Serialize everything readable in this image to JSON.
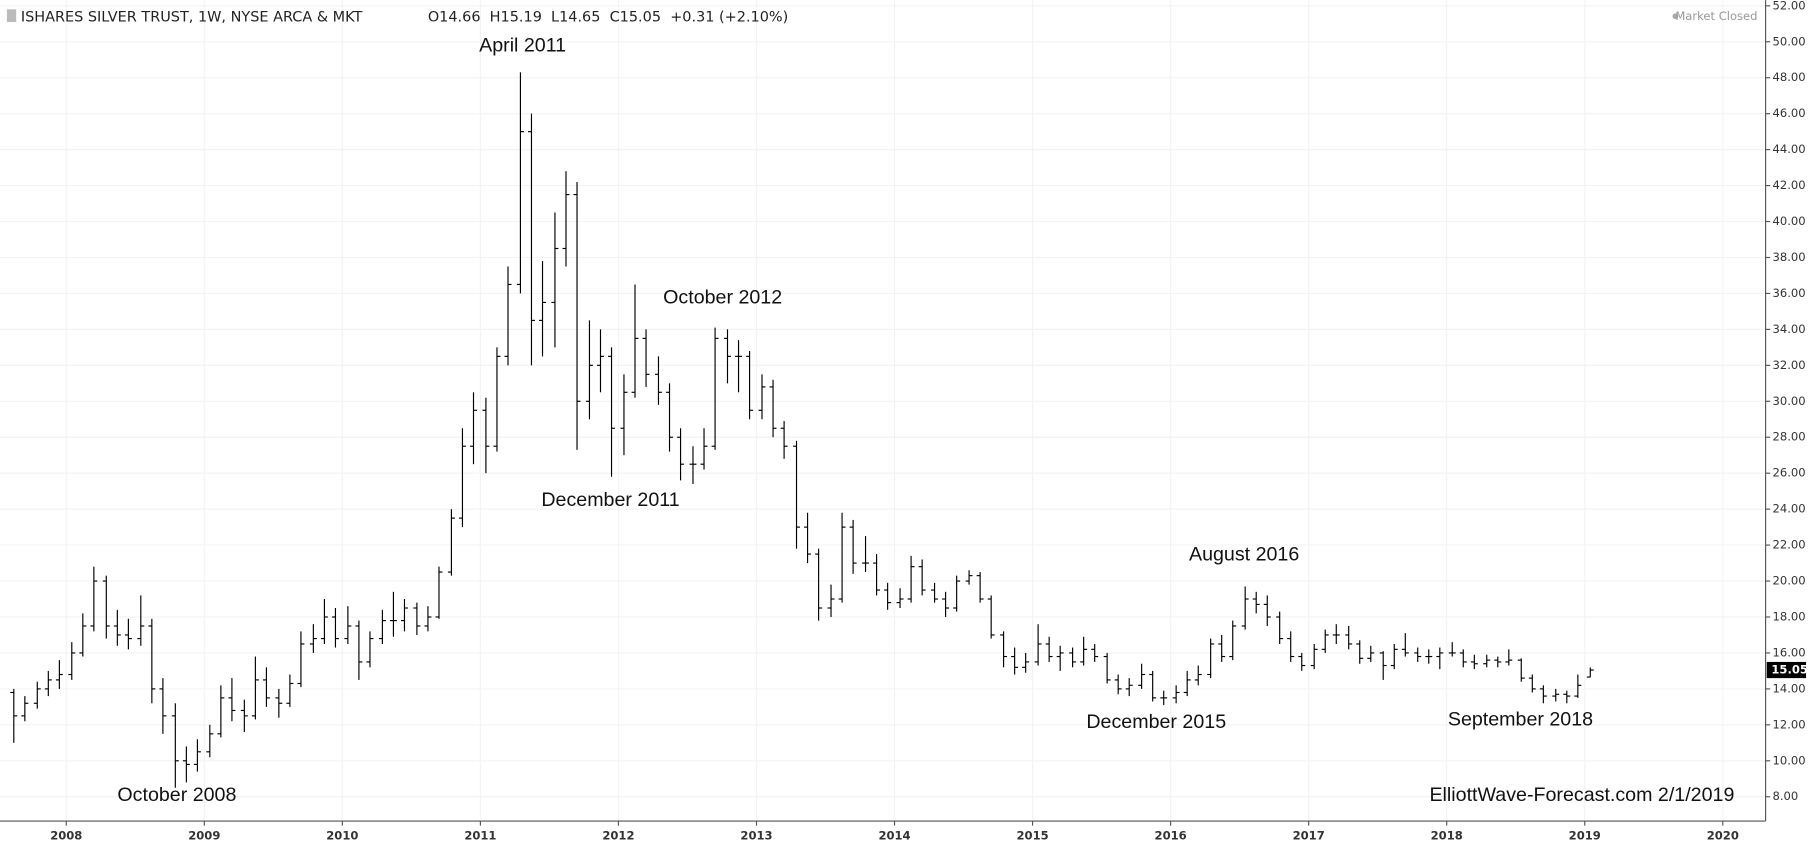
{
  "chart_data": {
    "type": "ohlc",
    "title": "ISHARES SILVER TRUST, 1W, NYSE ARCA & MKT",
    "ohlc_text": "O14.66  H15.19  L14.65  C15.05  +0.31 (+2.10%)",
    "status": "Market Closed",
    "watermark": "ElliottWave-Forecast.com 2/1/2019",
    "last_price": 15.05,
    "annotations": [
      "April 2011",
      "December 2011",
      "October 2012",
      "October 2008",
      "August 2016",
      "December  2015",
      "September 2018"
    ],
    "xlim": [
      2007.52,
      2020.31
    ],
    "xticks": [
      2008,
      2009,
      2010,
      2011,
      2012,
      2013,
      2014,
      2015,
      2016,
      2017,
      2018,
      2019,
      2020
    ],
    "ylim": [
      6.65,
      52.32
    ],
    "yticks": [
      {
        "value": 8,
        "label": "8.00"
      },
      {
        "value": 10,
        "label": "10.00"
      },
      {
        "value": 12,
        "label": "12.00"
      },
      {
        "value": 14,
        "label": "14.00"
      },
      {
        "value": 16,
        "label": "16.00"
      },
      {
        "value": 18,
        "label": "18.00"
      },
      {
        "value": 20,
        "label": "20.00"
      },
      {
        "value": 22,
        "label": "22.00"
      },
      {
        "value": 24,
        "label": "24.00"
      },
      {
        "value": 26,
        "label": "26.00"
      },
      {
        "value": 28,
        "label": "28.00"
      },
      {
        "value": 30,
        "label": "30.00"
      },
      {
        "value": 32,
        "label": "32.00"
      },
      {
        "value": 34,
        "label": "34.00"
      },
      {
        "value": 36,
        "label": "36.00"
      },
      {
        "value": 38,
        "label": "38.00"
      },
      {
        "value": 40,
        "label": "40.00"
      },
      {
        "value": 42,
        "label": "42.00"
      },
      {
        "value": 44,
        "label": "44.00"
      },
      {
        "value": 46,
        "label": "46.00"
      },
      {
        "value": 48,
        "label": "48.00"
      },
      {
        "value": 50,
        "label": "50.00"
      },
      {
        "value": 52,
        "label": "52.00"
      }
    ],
    "grid": true,
    "color": "#000000",
    "x": [
      2007.62,
      2007.7,
      2007.79,
      2007.87,
      2007.95,
      2008.04,
      2008.12,
      2008.2,
      2008.29,
      2008.37,
      2008.45,
      2008.54,
      2008.62,
      2008.7,
      2008.79,
      2008.87,
      2008.95,
      2009.04,
      2009.12,
      2009.2,
      2009.29,
      2009.37,
      2009.45,
      2009.54,
      2009.62,
      2009.7,
      2009.79,
      2009.87,
      2009.95,
      2010.04,
      2010.12,
      2010.2,
      2010.29,
      2010.37,
      2010.45,
      2010.54,
      2010.62,
      2010.7,
      2010.79,
      2010.87,
      2010.95,
      2011.04,
      2011.12,
      2011.2,
      2011.29,
      2011.37,
      2011.45,
      2011.54,
      2011.62,
      2011.7,
      2011.79,
      2011.87,
      2011.95,
      2012.04,
      2012.12,
      2012.2,
      2012.29,
      2012.37,
      2012.45,
      2012.54,
      2012.62,
      2012.7,
      2012.79,
      2012.87,
      2012.95,
      2013.04,
      2013.12,
      2013.2,
      2013.29,
      2013.37,
      2013.45,
      2013.54,
      2013.62,
      2013.7,
      2013.79,
      2013.87,
      2013.95,
      2014.04,
      2014.12,
      2014.2,
      2014.29,
      2014.37,
      2014.45,
      2014.54,
      2014.62,
      2014.7,
      2014.79,
      2014.87,
      2014.95,
      2015.04,
      2015.12,
      2015.2,
      2015.29,
      2015.37,
      2015.45,
      2015.54,
      2015.62,
      2015.7,
      2015.79,
      2015.87,
      2015.95,
      2016.04,
      2016.12,
      2016.2,
      2016.29,
      2016.37,
      2016.45,
      2016.54,
      2016.62,
      2016.7,
      2016.79,
      2016.87,
      2016.95,
      2017.04,
      2017.12,
      2017.2,
      2017.29,
      2017.37,
      2017.45,
      2017.54,
      2017.62,
      2017.7,
      2017.79,
      2017.87,
      2017.95,
      2018.04,
      2018.12,
      2018.2,
      2018.29,
      2018.37,
      2018.45,
      2018.54,
      2018.62,
      2018.7,
      2018.79,
      2018.87,
      2018.95,
      2019.04
    ],
    "open": [
      13.8,
      12.5,
      13.2,
      14.0,
      14.5,
      14.8,
      16.0,
      17.5,
      20.0,
      17.5,
      17.0,
      16.8,
      17.5,
      14.0,
      12.5,
      10.0,
      9.8,
      10.5,
      11.5,
      13.5,
      12.8,
      12.5,
      14.5,
      13.5,
      13.2,
      14.3,
      16.5,
      16.8,
      18.0,
      16.8,
      17.5,
      15.5,
      16.8,
      17.8,
      17.8,
      18.5,
      17.5,
      18.0,
      20.5,
      23.5,
      27.5,
      29.5,
      27.5,
      32.5,
      36.5,
      45.0,
      34.5,
      35.5,
      38.5,
      41.5,
      30.0,
      32.0,
      32.5,
      28.5,
      30.5,
      33.5,
      31.5,
      30.5,
      28.0,
      26.5,
      26.5,
      27.5,
      33.5,
      32.5,
      32.5,
      29.5,
      30.8,
      28.5,
      27.5,
      23.0,
      21.5,
      18.5,
      19.0,
      23.0,
      21.0,
      21.0,
      19.5,
      18.8,
      19.0,
      20.8,
      19.5,
      19.0,
      18.5,
      20.0,
      20.3,
      19.0,
      17.0,
      15.8,
      15.2,
      15.5,
      16.5,
      15.8,
      16.0,
      15.5,
      16.2,
      15.8,
      14.5,
      14.0,
      14.2,
      14.8,
      13.5,
      13.5,
      13.8,
      14.5,
      14.8,
      16.5,
      15.8,
      17.5,
      19.0,
      18.7,
      18.0,
      16.8,
      15.8,
      15.3,
      16.2,
      17.0,
      17.0,
      16.5,
      15.7,
      16.0,
      15.3,
      16.2,
      16.0,
      15.8,
      15.8,
      16.0,
      16.0,
      15.5,
      15.4,
      15.6,
      15.5,
      15.6,
      14.6,
      14.0,
      13.6,
      13.7,
      13.6,
      14.66
    ],
    "high": [
      14.0,
      13.6,
      14.4,
      15.0,
      15.6,
      16.6,
      18.2,
      20.8,
      20.3,
      18.4,
      17.9,
      19.2,
      17.9,
      14.6,
      13.2,
      10.8,
      11.2,
      12.0,
      14.2,
      14.6,
      13.4,
      15.8,
      15.2,
      14.0,
      14.8,
      17.2,
      17.6,
      19.0,
      18.5,
      18.6,
      17.8,
      17.2,
      18.4,
      19.4,
      19.0,
      18.8,
      18.6,
      20.8,
      24.0,
      28.5,
      30.5,
      30.2,
      33.0,
      37.5,
      48.3,
      46.0,
      37.8,
      40.5,
      42.8,
      42.2,
      34.5,
      34.0,
      33.0,
      31.5,
      36.5,
      34.0,
      32.5,
      31.0,
      28.5,
      27.5,
      28.5,
      34.1,
      34.0,
      33.4,
      32.8,
      31.5,
      31.2,
      28.9,
      27.8,
      23.8,
      21.8,
      19.8,
      23.8,
      23.4,
      22.5,
      21.5,
      19.9,
      19.6,
      21.4,
      21.2,
      19.9,
      19.4,
      20.3,
      20.6,
      20.5,
      19.2,
      17.2,
      16.3,
      16.0,
      17.6,
      16.9,
      16.4,
      16.3,
      16.9,
      16.5,
      16.0,
      14.8,
      14.6,
      15.4,
      15.0,
      13.9,
      14.2,
      15.0,
      15.3,
      16.8,
      17.0,
      17.8,
      19.7,
      19.4,
      19.2,
      18.3,
      17.2,
      16.0,
      16.5,
      17.3,
      17.6,
      17.5,
      16.7,
      16.4,
      16.1,
      16.5,
      17.1,
      16.3,
      16.2,
      16.3,
      16.6,
      16.2,
      15.9,
      15.9,
      15.8,
      16.2,
      15.7,
      14.8,
      14.2,
      14.0,
      13.9,
      14.8,
      15.19
    ],
    "low": [
      11.0,
      12.2,
      12.9,
      13.6,
      14.0,
      14.5,
      15.8,
      17.2,
      16.8,
      16.4,
      16.2,
      16.4,
      13.2,
      11.5,
      8.5,
      8.8,
      9.4,
      10.2,
      11.3,
      12.2,
      11.6,
      12.3,
      13.0,
      12.4,
      13.0,
      14.1,
      16.0,
      16.5,
      16.3,
      16.5,
      14.5,
      15.2,
      16.5,
      16.9,
      17.2,
      17.0,
      17.2,
      17.9,
      20.3,
      23.0,
      26.5,
      26.0,
      27.2,
      32.0,
      36.0,
      32.0,
      32.5,
      33.0,
      37.5,
      27.3,
      29.0,
      30.5,
      25.8,
      27.0,
      30.2,
      30.8,
      29.8,
      27.2,
      25.6,
      25.4,
      26.2,
      27.3,
      31.0,
      30.5,
      29.0,
      29.0,
      28.0,
      26.8,
      21.8,
      21.0,
      17.8,
      18.0,
      18.8,
      20.4,
      20.5,
      19.2,
      18.4,
      18.5,
      18.8,
      19.2,
      18.8,
      18.0,
      18.3,
      19.8,
      18.8,
      16.8,
      15.2,
      14.8,
      14.9,
      15.3,
      15.5,
      15.0,
      15.2,
      15.3,
      15.5,
      14.3,
      13.7,
      13.6,
      14.0,
      13.3,
      13.1,
      13.2,
      13.6,
      14.2,
      14.6,
      15.5,
      15.6,
      17.3,
      18.2,
      17.5,
      16.5,
      15.5,
      15.0,
      15.1,
      16.0,
      16.5,
      16.2,
      15.4,
      15.5,
      14.5,
      15.1,
      15.8,
      15.5,
      15.4,
      15.1,
      15.8,
      15.2,
      15.1,
      15.2,
      15.2,
      15.3,
      14.4,
      13.8,
      13.2,
      13.3,
      13.2,
      13.5,
      14.65
    ],
    "close": [
      12.5,
      13.2,
      14.0,
      14.5,
      14.8,
      16.0,
      17.5,
      20.0,
      17.5,
      17.0,
      16.8,
      17.5,
      14.0,
      12.5,
      10.0,
      9.8,
      10.5,
      11.5,
      13.5,
      12.8,
      12.5,
      14.5,
      13.5,
      13.2,
      14.3,
      16.5,
      16.8,
      18.0,
      16.8,
      17.5,
      15.5,
      16.8,
      17.8,
      17.8,
      18.5,
      17.5,
      18.0,
      20.5,
      23.5,
      27.5,
      29.5,
      27.5,
      32.5,
      36.5,
      45.0,
      34.5,
      35.5,
      38.5,
      41.5,
      30.0,
      32.0,
      32.5,
      28.5,
      30.5,
      33.5,
      31.5,
      30.5,
      28.0,
      26.5,
      26.5,
      27.5,
      33.5,
      32.5,
      32.5,
      29.5,
      30.8,
      28.5,
      27.5,
      23.0,
      21.5,
      18.5,
      19.0,
      23.0,
      21.0,
      21.0,
      19.5,
      18.8,
      19.0,
      20.8,
      19.5,
      19.0,
      18.5,
      20.0,
      20.3,
      19.0,
      17.0,
      15.8,
      15.2,
      15.5,
      16.5,
      15.8,
      16.0,
      15.5,
      16.2,
      15.8,
      14.5,
      14.0,
      14.2,
      14.8,
      13.5,
      13.5,
      13.8,
      14.5,
      14.8,
      16.5,
      15.8,
      17.5,
      19.0,
      18.7,
      18.0,
      16.8,
      15.8,
      15.3,
      16.2,
      17.0,
      17.0,
      16.5,
      15.7,
      16.0,
      15.3,
      16.2,
      16.0,
      15.8,
      15.8,
      16.0,
      16.0,
      15.5,
      15.4,
      15.6,
      15.5,
      15.6,
      14.6,
      14.0,
      13.6,
      13.7,
      13.6,
      14.2,
      15.05
    ]
  }
}
